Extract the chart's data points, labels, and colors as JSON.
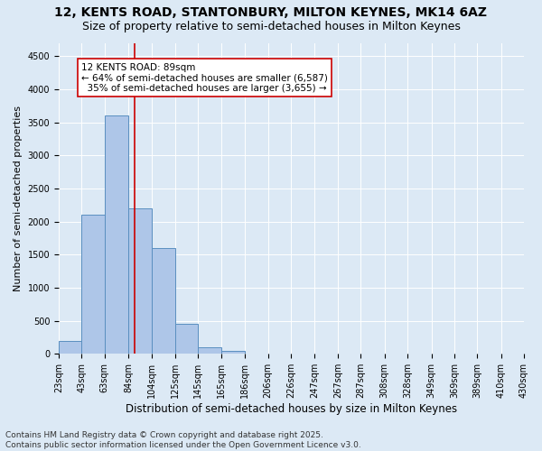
{
  "title1": "12, KENTS ROAD, STANTONBURY, MILTON KEYNES, MK14 6AZ",
  "title2": "Size of property relative to semi-detached houses in Milton Keynes",
  "xlabel": "Distribution of semi-detached houses by size in Milton Keynes",
  "ylabel": "Number of semi-detached properties",
  "bar_edges": [
    23,
    43,
    63,
    84,
    104,
    125,
    145,
    165,
    186,
    206,
    226,
    247,
    267,
    287,
    308,
    328,
    349,
    369,
    389,
    410,
    430
  ],
  "bar_heights": [
    200,
    2100,
    3600,
    2200,
    1600,
    450,
    100,
    50,
    10,
    5,
    2,
    1,
    0,
    0,
    0,
    0,
    0,
    0,
    0,
    0
  ],
  "bar_color": "#aec6e8",
  "bar_edge_color": "#5a8fc0",
  "property_size": 89,
  "vline_color": "#cc0000",
  "annotation_text": "12 KENTS ROAD: 89sqm\n← 64% of semi-detached houses are smaller (6,587)\n  35% of semi-detached houses are larger (3,655) →",
  "annotation_box_color": "#cc0000",
  "ylim": [
    0,
    4700
  ],
  "yticks": [
    0,
    500,
    1000,
    1500,
    2000,
    2500,
    3000,
    3500,
    4000,
    4500
  ],
  "background_color": "#dce9f5",
  "plot_bg_color": "#dce9f5",
  "footer_text": "Contains HM Land Registry data © Crown copyright and database right 2025.\nContains public sector information licensed under the Open Government Licence v3.0.",
  "title1_fontsize": 10,
  "title2_fontsize": 9,
  "xlabel_fontsize": 8.5,
  "ylabel_fontsize": 8,
  "annotation_fontsize": 7.5,
  "footer_fontsize": 6.5,
  "tick_fontsize": 7
}
